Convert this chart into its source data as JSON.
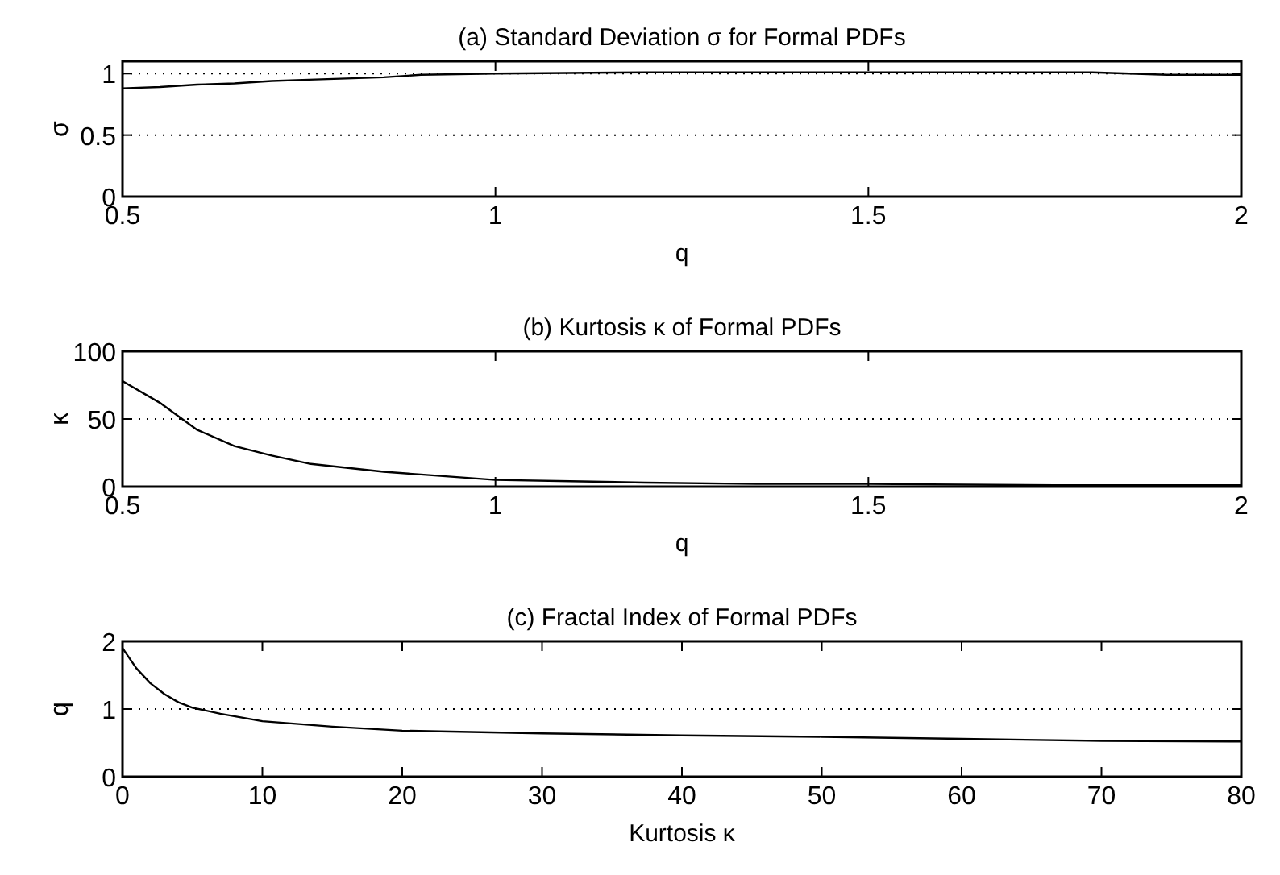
{
  "chart_data": [
    {
      "type": "line",
      "title": "(a) Standard Deviation σ for Formal PDFs",
      "xlabel": "q",
      "ylabel": "σ",
      "xlim": [
        0.5,
        2
      ],
      "xticks": [
        0.5,
        1,
        1.5,
        2
      ],
      "ylim": [
        0,
        1.1
      ],
      "yticks": [
        0,
        0.5,
        1
      ],
      "grid": "y",
      "series": [
        {
          "color": "#000000",
          "x": [
            0.5,
            0.55,
            0.6,
            0.65,
            0.7,
            0.75,
            0.8,
            0.85,
            0.9,
            1.0,
            1.2,
            1.5,
            1.8,
            1.9,
            2.0
          ],
          "values": [
            0.88,
            0.89,
            0.91,
            0.92,
            0.94,
            0.95,
            0.96,
            0.97,
            0.99,
            1.0,
            1.01,
            1.01,
            1.01,
            0.99,
            0.99
          ]
        }
      ]
    },
    {
      "type": "line",
      "title": "(b) Kurtosis κ of Formal PDFs",
      "xlabel": "q",
      "ylabel": "κ",
      "xlim": [
        0.5,
        2
      ],
      "xticks": [
        0.5,
        1,
        1.5,
        2
      ],
      "ylim": [
        0,
        100
      ],
      "yticks": [
        0,
        50,
        100
      ],
      "grid": "y",
      "series": [
        {
          "color": "#000000",
          "x": [
            0.5,
            0.55,
            0.6,
            0.65,
            0.7,
            0.75,
            0.8,
            0.85,
            0.9,
            1.0,
            1.1,
            1.2,
            1.35,
            1.5,
            1.75,
            2.0
          ],
          "values": [
            78,
            62,
            42,
            30,
            23,
            17,
            14,
            11,
            9,
            5,
            4,
            3,
            2,
            2,
            1,
            1
          ]
        }
      ]
    },
    {
      "type": "line",
      "title": "(c) Fractal Index of Formal PDFs",
      "xlabel": "Kurtosis κ",
      "ylabel": "q",
      "xlim": [
        0,
        80
      ],
      "xticks": [
        0,
        10,
        20,
        30,
        40,
        50,
        60,
        70,
        80
      ],
      "ylim": [
        0,
        2
      ],
      "yticks": [
        0,
        1,
        2
      ],
      "grid": "y",
      "series": [
        {
          "color": "#000000",
          "x": [
            0,
            1,
            2,
            3,
            4,
            5,
            7,
            10,
            15,
            20,
            30,
            40,
            50,
            60,
            70,
            80
          ],
          "values": [
            1.9,
            1.6,
            1.38,
            1.22,
            1.1,
            1.02,
            0.93,
            0.82,
            0.74,
            0.68,
            0.64,
            0.61,
            0.59,
            0.56,
            0.53,
            0.52
          ]
        }
      ]
    }
  ]
}
